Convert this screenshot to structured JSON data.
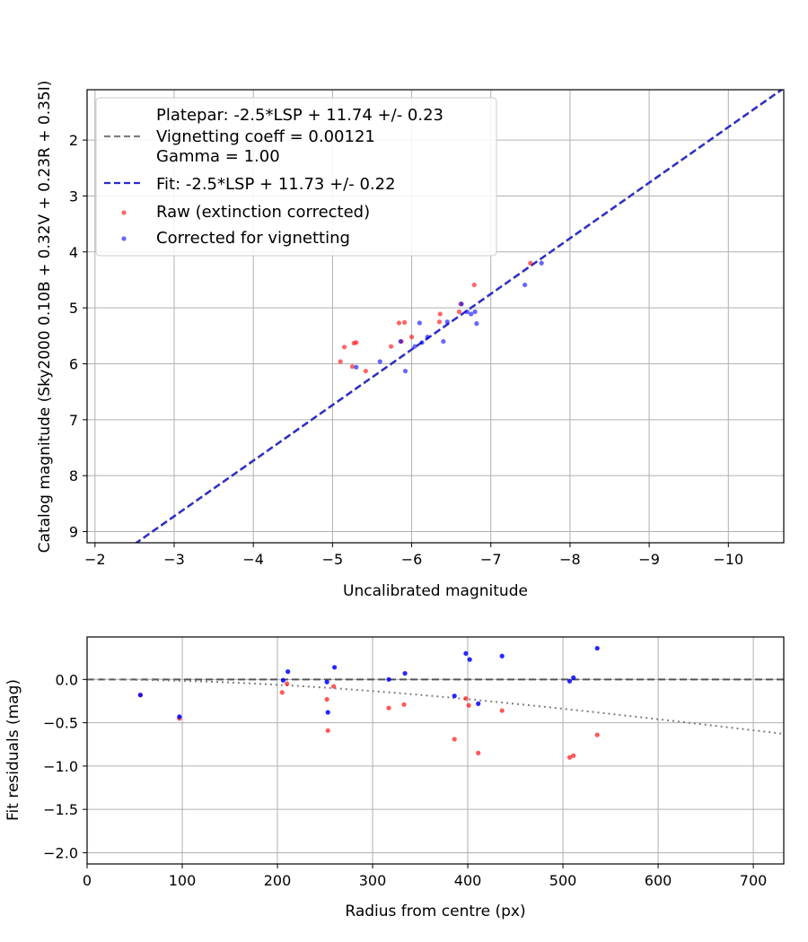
{
  "chart_data": [
    {
      "type": "scatter",
      "xlabel": "Uncalibrated magnitude",
      "ylabel": "Catalog magnitude (Sky2000 0.10B + 0.32V + 0.23R + 0.35I)",
      "xlim": [
        -1.9,
        -10.7
      ],
      "ylim": [
        9.2,
        1.1
      ],
      "x_inverted": true,
      "y_inverted": true,
      "xticks": [
        -2,
        -3,
        -4,
        -5,
        -6,
        -7,
        -8,
        -9,
        -10
      ],
      "xtick_labels": [
        "−2",
        "−3",
        "−4",
        "−5",
        "−6",
        "−7",
        "−8",
        "−9",
        "−10"
      ],
      "yticks": [
        2,
        3,
        4,
        5,
        6,
        7,
        8,
        9
      ],
      "ytick_labels": [
        "2",
        "3",
        "4",
        "5",
        "6",
        "7",
        "8",
        "9"
      ],
      "grid": true,
      "legend_position": "top-left",
      "legend": [
        {
          "label": "Platepar: -2.5*LSP + 11.74 +/- 0.23",
          "marker": "none"
        },
        {
          "label": "Vignetting coeff = 0.00121",
          "marker": "line",
          "color": "#7f7f7f",
          "dash": true
        },
        {
          "label": "Gamma = 1.00",
          "marker": "none"
        },
        {
          "label": "Fit: -2.5*LSP + 11.73 +/- 0.22",
          "marker": "line",
          "color": "#2a2ad2",
          "dash": true
        },
        {
          "label": "Raw (extinction corrected)",
          "marker": "dot",
          "color": "#ff0000"
        },
        {
          "label": "Corrected for vignetting",
          "marker": "dot",
          "color": "#0000ff"
        }
      ],
      "lines": [
        {
          "name": "Platepar",
          "color": "#7f7f7f",
          "dash": true,
          "x": [
            -2.5,
            -10.7
          ],
          "y": [
            9.23,
            1.08
          ]
        },
        {
          "name": "Fit",
          "color": "#2a2ad2",
          "dash": true,
          "x": [
            -2.5,
            -10.7
          ],
          "y": [
            9.22,
            1.07
          ]
        }
      ],
      "series": [
        {
          "name": "Raw (extinction corrected)",
          "color": "#ff0000",
          "points": [
            [
              -5.1,
              5.96
            ],
            [
              -5.15,
              5.7
            ],
            [
              -5.25,
              6.05
            ],
            [
              -5.27,
              5.63
            ],
            [
              -5.3,
              5.62
            ],
            [
              -5.42,
              6.13
            ],
            [
              -5.74,
              5.69
            ],
            [
              -5.84,
              5.27
            ],
            [
              -5.87,
              5.6
            ],
            [
              -5.91,
              5.26
            ],
            [
              -6.0,
              5.52
            ],
            [
              -6.35,
              5.25
            ],
            [
              -6.36,
              5.11
            ],
            [
              -6.6,
              5.07
            ],
            [
              -6.62,
              4.93
            ],
            [
              -6.79,
              4.59
            ],
            [
              -7.5,
              4.2
            ]
          ]
        },
        {
          "name": "Corrected for vignetting",
          "color": "#0000ff",
          "points": [
            [
              -5.3,
              6.06
            ],
            [
              -5.6,
              5.96
            ],
            [
              -5.86,
              5.6
            ],
            [
              -5.92,
              6.13
            ],
            [
              -6.04,
              5.69
            ],
            [
              -6.1,
              5.27
            ],
            [
              -6.13,
              5.62
            ],
            [
              -6.2,
              5.52
            ],
            [
              -6.4,
              5.6
            ],
            [
              -6.45,
              5.25
            ],
            [
              -6.63,
              4.93
            ],
            [
              -6.7,
              5.07
            ],
            [
              -6.75,
              5.11
            ],
            [
              -6.8,
              5.07
            ],
            [
              -6.82,
              5.28
            ],
            [
              -7.43,
              4.59
            ],
            [
              -7.64,
              4.2
            ]
          ]
        }
      ]
    },
    {
      "type": "scatter",
      "xlabel": "Radius from centre (px)",
      "ylabel": "Fit residuals (mag)",
      "xlim": [
        0,
        732
      ],
      "ylim": [
        -2.13,
        0.49
      ],
      "xticks": [
        0,
        100,
        200,
        300,
        400,
        500,
        600,
        700
      ],
      "xtick_labels": [
        "0",
        "100",
        "200",
        "300",
        "400",
        "500",
        "600",
        "700"
      ],
      "yticks": [
        0.0,
        -0.5,
        -1.0,
        -1.5,
        -2.0
      ],
      "ytick_labels": [
        "0.0",
        "−0.5",
        "−1.0",
        "−1.5",
        "−2.0"
      ],
      "grid": true,
      "hline": {
        "y": 0.0,
        "color": "#555555",
        "dash": true
      },
      "curve": {
        "color": "#7f7f7f",
        "style": "dotted",
        "x_max": 732,
        "equation": "-2.5*log10(1 + (v*r)^2)",
        "vignetting_coeff": 0.00121
      },
      "series": [
        {
          "name": "Raw (extinction corrected)",
          "color": "#ff0000",
          "points": [
            [
              56,
              -0.18
            ],
            [
              97,
              -0.45
            ],
            [
              205,
              -0.15
            ],
            [
              210,
              -0.05
            ],
            [
              252,
              -0.23
            ],
            [
              253,
              -0.59
            ],
            [
              259,
              -0.08
            ],
            [
              317,
              -0.33
            ],
            [
              333,
              -0.29
            ],
            [
              386,
              -0.69
            ],
            [
              398,
              -0.22
            ],
            [
              401,
              -0.3
            ],
            [
              411,
              -0.85
            ],
            [
              436,
              -0.36
            ],
            [
              507,
              -0.9
            ],
            [
              511,
              -0.88
            ],
            [
              536,
              -0.64
            ]
          ]
        },
        {
          "name": "Corrected for vignetting",
          "color": "#0000ff",
          "points": [
            [
              56,
              -0.18
            ],
            [
              97,
              -0.43
            ],
            [
              206,
              -0.01
            ],
            [
              211,
              0.09
            ],
            [
              252,
              -0.03
            ],
            [
              253,
              -0.38
            ],
            [
              260,
              0.14
            ],
            [
              317,
              0.0
            ],
            [
              334,
              0.07
            ],
            [
              386,
              -0.19
            ],
            [
              398,
              0.3
            ],
            [
              402,
              0.23
            ],
            [
              411,
              -0.28
            ],
            [
              436,
              0.27
            ],
            [
              507,
              -0.02
            ],
            [
              511,
              0.02
            ],
            [
              536,
              0.36
            ]
          ]
        }
      ]
    }
  ]
}
